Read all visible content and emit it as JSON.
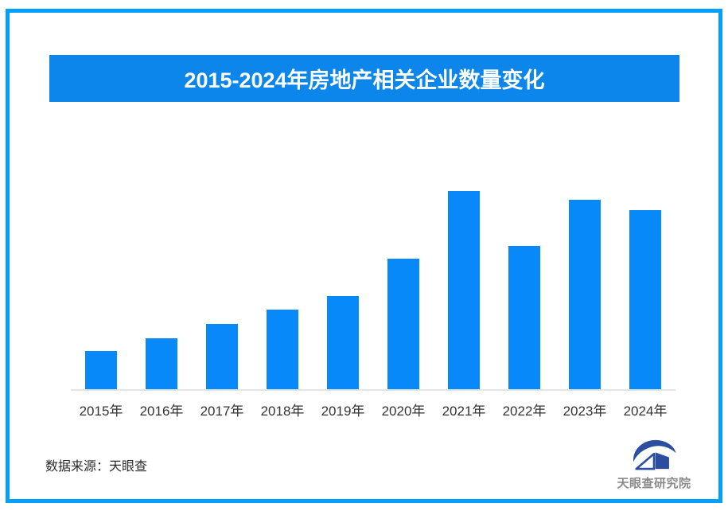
{
  "frame": {
    "border_color": "#00A0FF"
  },
  "title_banner": {
    "text": "2015-2024年房地产相关企业数量变化",
    "bg_color": "#0C86EB",
    "text_color": "#FFFFFF"
  },
  "chart_data": {
    "type": "bar",
    "title": "2015-2024年房地产相关企业数量变化",
    "categories": [
      "2015年",
      "2016年",
      "2017年",
      "2018年",
      "2019年",
      "2020年",
      "2021年",
      "2022年",
      "2023年",
      "2024年"
    ],
    "values": [
      48,
      64,
      82,
      100,
      117,
      164,
      249,
      180,
      238,
      225
    ],
    "values_unit": "relative bar height (chart shows no numeric axis or data labels)",
    "xlabel": "",
    "ylabel": "",
    "bar_color": "#0789FA",
    "axis_line_color": "#E4E4E4",
    "tick_label_color": "#333333",
    "grid": false,
    "legend": false
  },
  "footer": {
    "source_label": "数据来源：天眼查",
    "logo_text": "天眼查研究院",
    "logo_mark_color": "#2B4F9E",
    "logo_text_color": "#8A8A8A"
  }
}
